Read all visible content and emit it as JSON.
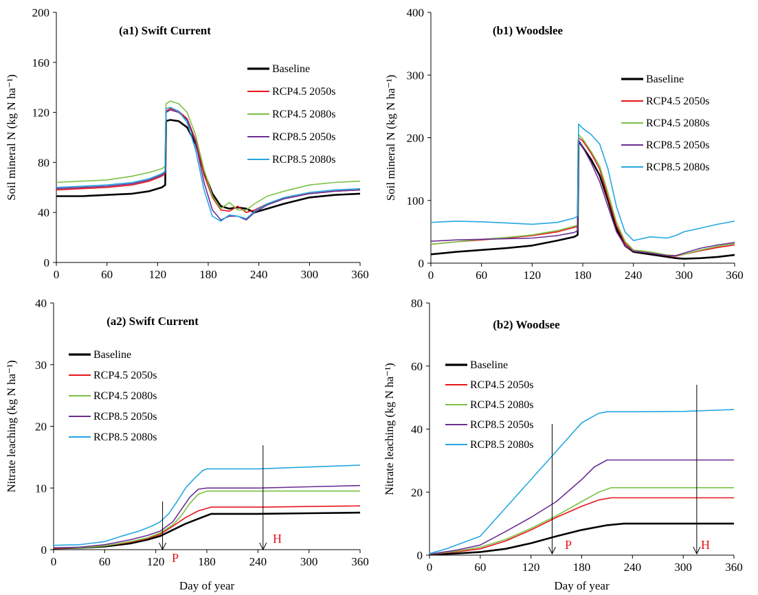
{
  "colors": {
    "Baseline": "#000000",
    "RCP4.5 2050s": "#e8131b",
    "RCP4.5 2080s": "#7ac143",
    "RCP8.5 2050s": "#6a2d91",
    "RCP8.5 2080s": "#23a6e0"
  },
  "chart_data": [
    {
      "id": "a1",
      "type": "line",
      "title": "(a1) Swift Current",
      "xlabel": "",
      "ylabel": "Soil mineral N (kg N ha⁻¹)",
      "xlim": [
        0,
        360
      ],
      "ylim": [
        0,
        200
      ],
      "xticks": [
        0,
        60,
        120,
        180,
        240,
        300,
        360
      ],
      "yticks": [
        0,
        40,
        80,
        120,
        160,
        200
      ],
      "legend_position": "right",
      "series": [
        {
          "name": "Baseline",
          "x": [
            0,
            30,
            60,
            90,
            110,
            125,
            129,
            130,
            135,
            145,
            155,
            165,
            175,
            185,
            195,
            205,
            215,
            225,
            235,
            250,
            270,
            300,
            330,
            360
          ],
          "y": [
            53,
            53,
            54,
            55,
            57,
            60,
            62,
            113,
            114,
            113,
            108,
            95,
            72,
            55,
            45,
            43,
            44,
            43,
            40,
            43,
            47,
            52,
            54,
            55
          ]
        },
        {
          "name": "RCP4.5 2050s",
          "x": [
            0,
            30,
            60,
            90,
            110,
            125,
            129,
            130,
            135,
            145,
            155,
            165,
            175,
            185,
            195,
            205,
            215,
            225,
            235,
            250,
            270,
            300,
            330,
            360
          ],
          "y": [
            58,
            59,
            60,
            62,
            65,
            69,
            71,
            121,
            123,
            121,
            115,
            98,
            70,
            52,
            42,
            41,
            45,
            40,
            42,
            47,
            51,
            55,
            57,
            58
          ]
        },
        {
          "name": "RCP4.5 2080s",
          "x": [
            0,
            30,
            60,
            90,
            110,
            125,
            129,
            130,
            135,
            145,
            155,
            165,
            175,
            185,
            195,
            205,
            215,
            225,
            235,
            250,
            270,
            300,
            330,
            360
          ],
          "y": [
            64,
            65,
            66,
            69,
            72,
            75,
            77,
            127,
            129,
            127,
            120,
            102,
            74,
            53,
            43,
            48,
            42,
            42,
            47,
            53,
            57,
            62,
            64,
            65
          ]
        },
        {
          "name": "RCP8.5 2050s",
          "x": [
            0,
            30,
            60,
            90,
            110,
            125,
            129,
            130,
            135,
            145,
            155,
            165,
            175,
            185,
            195,
            205,
            215,
            225,
            235,
            250,
            270,
            300,
            330,
            360
          ],
          "y": [
            59,
            60,
            61,
            63,
            66,
            70,
            72,
            120,
            122,
            120,
            114,
            96,
            64,
            42,
            34,
            37,
            37,
            34,
            40,
            46,
            51,
            55,
            57,
            58
          ]
        },
        {
          "name": "RCP8.5 2080s",
          "x": [
            0,
            30,
            60,
            90,
            110,
            125,
            129,
            130,
            135,
            145,
            155,
            165,
            175,
            185,
            195,
            205,
            215,
            225,
            235,
            250,
            270,
            300,
            330,
            360
          ],
          "y": [
            60,
            61,
            62,
            64,
            67,
            71,
            73,
            123,
            124,
            121,
            112,
            90,
            58,
            37,
            33,
            38,
            37,
            35,
            41,
            47,
            52,
            56,
            58,
            59
          ]
        }
      ]
    },
    {
      "id": "b1",
      "type": "line",
      "title": "(b1) Woodslee",
      "xlabel": "",
      "ylabel": "Soil mineral N (kg N ha⁻¹)",
      "xlim": [
        0,
        360
      ],
      "ylim": [
        0,
        400
      ],
      "xticks": [
        0,
        60,
        120,
        180,
        240,
        300,
        360
      ],
      "yticks": [
        0,
        100,
        200,
        300,
        400
      ],
      "legend_position": "right",
      "series": [
        {
          "name": "Baseline",
          "x": [
            0,
            30,
            60,
            90,
            120,
            150,
            170,
            174,
            175,
            180,
            190,
            200,
            210,
            220,
            230,
            240,
            260,
            280,
            290,
            300,
            320,
            340,
            360
          ],
          "y": [
            14,
            18,
            21,
            24,
            28,
            36,
            42,
            45,
            195,
            185,
            165,
            140,
            100,
            55,
            28,
            18,
            14,
            10,
            8,
            7,
            8,
            10,
            13
          ]
        },
        {
          "name": "RCP4.5 2050s",
          "x": [
            0,
            30,
            60,
            90,
            120,
            150,
            170,
            174,
            175,
            180,
            190,
            200,
            210,
            220,
            230,
            240,
            260,
            280,
            290,
            300,
            320,
            340,
            360
          ],
          "y": [
            30,
            34,
            37,
            40,
            44,
            50,
            57,
            59,
            200,
            195,
            175,
            150,
            105,
            60,
            32,
            20,
            16,
            12,
            11,
            14,
            20,
            25,
            29
          ]
        },
        {
          "name": "RCP4.5 2080s",
          "x": [
            0,
            30,
            60,
            90,
            120,
            150,
            170,
            174,
            175,
            180,
            190,
            200,
            210,
            220,
            230,
            240,
            260,
            280,
            290,
            300,
            320,
            340,
            360
          ],
          "y": [
            30,
            34,
            38,
            41,
            45,
            52,
            59,
            61,
            205,
            198,
            178,
            155,
            112,
            65,
            35,
            21,
            18,
            13,
            12,
            14,
            21,
            27,
            31
          ]
        },
        {
          "name": "RCP8.5 2050s",
          "x": [
            0,
            30,
            60,
            90,
            120,
            150,
            170,
            174,
            175,
            180,
            190,
            200,
            210,
            220,
            230,
            240,
            260,
            280,
            290,
            300,
            320,
            340,
            360
          ],
          "y": [
            35,
            37,
            38,
            39,
            40,
            44,
            49,
            52,
            195,
            185,
            160,
            130,
            90,
            50,
            28,
            19,
            16,
            12,
            12,
            16,
            24,
            29,
            33
          ]
        },
        {
          "name": "RCP8.5 2080s",
          "x": [
            0,
            30,
            60,
            90,
            120,
            150,
            170,
            174,
            175,
            180,
            190,
            200,
            210,
            220,
            230,
            240,
            260,
            280,
            290,
            300,
            320,
            340,
            360
          ],
          "y": [
            65,
            67,
            66,
            64,
            62,
            65,
            72,
            75,
            222,
            215,
            205,
            190,
            150,
            90,
            50,
            36,
            42,
            40,
            44,
            50,
            56,
            62,
            67
          ]
        }
      ]
    },
    {
      "id": "a2",
      "type": "line",
      "title": "(a2) Swift Current",
      "xlabel": "Day of year",
      "ylabel": "Nitrate leaching (kg N ha⁻¹)",
      "xlim": [
        0,
        360
      ],
      "ylim": [
        0,
        40
      ],
      "xticks": [
        0,
        60,
        120,
        180,
        240,
        300,
        360
      ],
      "yticks": [
        0,
        10,
        20,
        30,
        40
      ],
      "legend_position": "left",
      "annotations": [
        {
          "label": "P",
          "x": 128
        },
        {
          "label": "H",
          "x": 246
        }
      ],
      "series": [
        {
          "name": "Baseline",
          "x": [
            0,
            30,
            60,
            90,
            110,
            125,
            140,
            155,
            170,
            185,
            200,
            240,
            300,
            360
          ],
          "y": [
            0.2,
            0.3,
            0.5,
            1.0,
            1.6,
            2.2,
            3.2,
            4.2,
            5.0,
            5.8,
            5.8,
            5.8,
            5.9,
            6.0
          ]
        },
        {
          "name": "RCP4.5 2050s",
          "x": [
            0,
            30,
            60,
            90,
            110,
            125,
            140,
            155,
            170,
            185,
            200,
            240,
            300,
            360
          ],
          "y": [
            0.2,
            0.3,
            0.6,
            1.2,
            1.8,
            2.5,
            3.8,
            5.2,
            6.3,
            6.9,
            6.9,
            6.9,
            7.0,
            7.1
          ]
        },
        {
          "name": "RCP4.5 2080s",
          "x": [
            0,
            30,
            60,
            90,
            110,
            125,
            140,
            150,
            160,
            170,
            180,
            200,
            240,
            300,
            360
          ],
          "y": [
            0.3,
            0.3,
            0.6,
            1.3,
            1.9,
            2.7,
            4.0,
            5.5,
            7.5,
            9.0,
            9.5,
            9.5,
            9.5,
            9.5,
            9.5
          ]
        },
        {
          "name": "RCP8.5 2050s",
          "x": [
            0,
            30,
            60,
            90,
            110,
            125,
            140,
            150,
            160,
            170,
            180,
            200,
            240,
            300,
            360
          ],
          "y": [
            0.3,
            0.4,
            0.8,
            1.6,
            2.3,
            3.0,
            4.5,
            6.5,
            8.5,
            9.8,
            10.0,
            10.0,
            10.0,
            10.2,
            10.4
          ]
        },
        {
          "name": "RCP8.5 2080s",
          "x": [
            0,
            30,
            60,
            80,
            100,
            115,
            125,
            135,
            145,
            155,
            165,
            175,
            180,
            200,
            240,
            300,
            360
          ],
          "y": [
            0.7,
            0.8,
            1.3,
            2.2,
            3.0,
            3.8,
            4.5,
            5.8,
            7.8,
            10.0,
            11.5,
            12.8,
            13.1,
            13.1,
            13.1,
            13.4,
            13.7
          ]
        }
      ]
    },
    {
      "id": "b2",
      "type": "line",
      "title": "(b2) Woodsee",
      "xlabel": "Day of year",
      "ylabel": "Nitrate leaching (kg N ha⁻¹)",
      "xlim": [
        0,
        360
      ],
      "ylim": [
        0,
        80
      ],
      "xticks": [
        0,
        60,
        120,
        180,
        240,
        300,
        360
      ],
      "yticks": [
        0,
        20,
        40,
        60,
        80
      ],
      "legend_position": "left",
      "annotations": [
        {
          "label": "P",
          "x": 145
        },
        {
          "label": "H",
          "x": 316
        }
      ],
      "series": [
        {
          "name": "Baseline",
          "x": [
            0,
            30,
            60,
            90,
            120,
            150,
            180,
            210,
            230,
            240,
            300,
            360
          ],
          "y": [
            0.2,
            0.5,
            1.0,
            2.0,
            3.8,
            6.0,
            8.0,
            9.5,
            10.0,
            10.0,
            10.0,
            10.0
          ]
        },
        {
          "name": "RCP4.5 2050s",
          "x": [
            0,
            30,
            60,
            90,
            120,
            150,
            180,
            200,
            215,
            240,
            300,
            360
          ],
          "y": [
            0.3,
            1.0,
            2.0,
            4.5,
            8.0,
            12.0,
            15.5,
            17.5,
            18.2,
            18.2,
            18.2,
            18.2
          ]
        },
        {
          "name": "RCP4.5 2080s",
          "x": [
            0,
            30,
            60,
            90,
            120,
            150,
            180,
            200,
            215,
            240,
            300,
            360
          ],
          "y": [
            0.3,
            1.2,
            2.5,
            5.0,
            8.5,
            12.5,
            17.0,
            20.0,
            21.4,
            21.4,
            21.4,
            21.4
          ]
        },
        {
          "name": "RCP8.5 2050s",
          "x": [
            0,
            30,
            60,
            90,
            120,
            150,
            180,
            195,
            210,
            240,
            300,
            360
          ],
          "y": [
            0.3,
            1.5,
            3.2,
            7.5,
            12.0,
            17.0,
            24.0,
            28.0,
            30.2,
            30.2,
            30.2,
            30.2
          ]
        },
        {
          "name": "RCP8.5 2080s",
          "x": [
            0,
            20,
            40,
            60,
            80,
            100,
            120,
            140,
            160,
            180,
            200,
            210,
            240,
            300,
            360
          ],
          "y": [
            0.5,
            2.0,
            4.0,
            6.0,
            12.0,
            18.0,
            24.0,
            30.0,
            36.0,
            42.0,
            45.0,
            45.5,
            45.5,
            45.6,
            46.2
          ]
        }
      ]
    }
  ]
}
